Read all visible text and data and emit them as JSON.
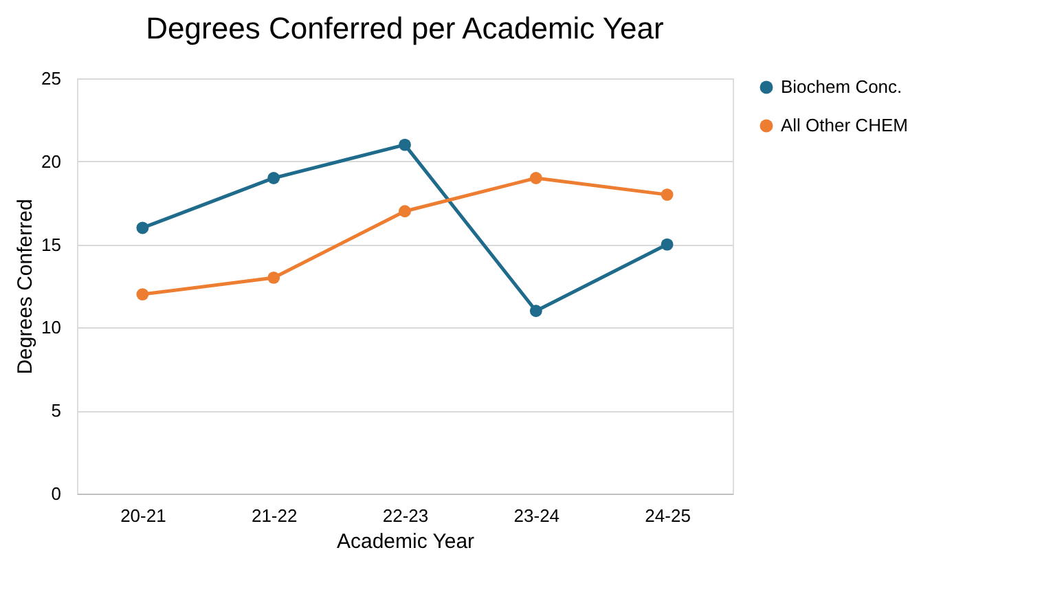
{
  "chart_data": {
    "type": "line",
    "title": "Degrees Conferred per Academic Year",
    "xlabel": "Academic Year",
    "ylabel": "Degrees Conferred",
    "categories": [
      "20-21",
      "21-22",
      "22-23",
      "23-24",
      "24-25"
    ],
    "series": [
      {
        "name": "Biochem Conc.",
        "color": "#1f6b8c",
        "values": [
          16,
          19,
          21,
          11,
          15
        ]
      },
      {
        "name": "All Other CHEM",
        "color": "#ed7d31",
        "values": [
          12,
          13,
          17,
          19,
          18
        ]
      }
    ],
    "ylim": [
      0,
      25
    ],
    "yticks": [
      0,
      5,
      10,
      15,
      20,
      25
    ],
    "grid": "y",
    "legend": "right",
    "marker": "circle",
    "line_style": "solid"
  }
}
